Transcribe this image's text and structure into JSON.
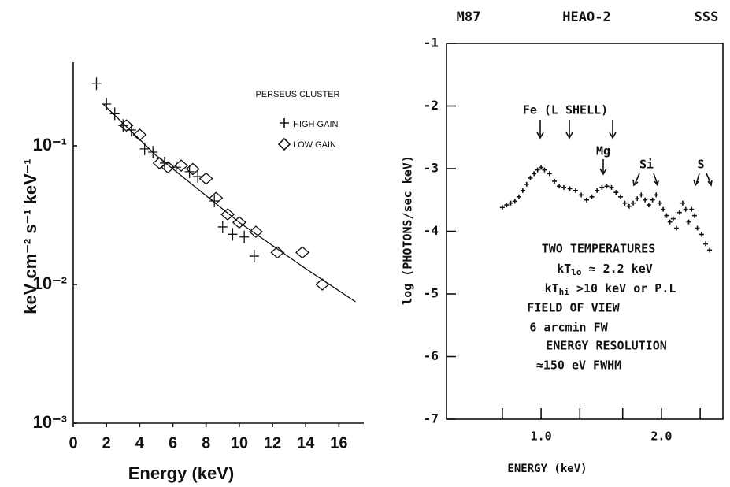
{
  "chart_data": [
    {
      "type": "scatter",
      "annotation": "PERSEUS CLUSTER",
      "x_label": "Energy (keV)",
      "y_label": "keV cm⁻² s⁻¹ keV⁻¹",
      "xlim": [
        0,
        17.5
      ],
      "xticks": [
        0,
        2,
        4,
        6,
        8,
        10,
        12,
        14,
        16
      ],
      "ylim": [
        0.001,
        0.4
      ],
      "log_y": true,
      "yticks": [
        {
          "value": 0.001,
          "label": "10⁻³"
        },
        {
          "value": 0.01,
          "label": "10⁻²"
        },
        {
          "value": 0.1,
          "label": "10⁻¹"
        }
      ],
      "series": [
        {
          "name": "HIGH GAIN",
          "marker": "cross",
          "color": "#111111",
          "x": [
            1.4,
            2.0,
            2.5,
            3.0,
            3.5,
            4.3,
            4.8,
            5.5,
            6.2,
            7.0,
            7.5,
            8.5,
            9.0,
            9.6,
            10.3,
            10.9
          ],
          "values": [
            0.28,
            0.2,
            0.17,
            0.14,
            0.13,
            0.095,
            0.09,
            0.075,
            0.07,
            0.065,
            0.06,
            0.04,
            0.026,
            0.023,
            0.022,
            0.016
          ]
        },
        {
          "name": "LOW GAIN",
          "marker": "diamond",
          "color": "#111111",
          "x": [
            3.2,
            4.0,
            5.2,
            5.7,
            6.5,
            7.2,
            8.0,
            8.6,
            9.3,
            10.0,
            11.0,
            12.3,
            13.8,
            15.0
          ],
          "values": [
            0.14,
            0.12,
            0.075,
            0.07,
            0.072,
            0.068,
            0.058,
            0.042,
            0.032,
            0.028,
            0.024,
            0.017,
            0.017,
            0.01
          ]
        }
      ],
      "fit": {
        "x": [
          1.8,
          5,
          10,
          14,
          17
        ],
        "values": [
          0.2,
          0.085,
          0.028,
          0.013,
          0.0075
        ]
      }
    },
    {
      "type": "scatter",
      "title_left": "M87",
      "title": "HEAO-2",
      "title_right": "SSS",
      "x_label": "ENERGY (keV)",
      "y_label": "log (PHOTONS/sec  keV)",
      "log_x": true,
      "xlim": [
        0.58,
        2.85
      ],
      "xticks": [
        {
          "value": 1.0,
          "label": "1.0"
        },
        {
          "value": 2.0,
          "label": "2.0"
        }
      ],
      "xminor_ticks": [
        0.8,
        1.25,
        1.6,
        2.5
      ],
      "ylim": [
        -7,
        -1
      ],
      "yticks": [
        -7,
        -6,
        -5,
        -4,
        -3,
        -2,
        -1
      ],
      "color": "#111111",
      "x": [
        0.8,
        0.82,
        0.84,
        0.86,
        0.88,
        0.9,
        0.92,
        0.94,
        0.96,
        0.98,
        1.0,
        1.02,
        1.05,
        1.08,
        1.11,
        1.14,
        1.18,
        1.22,
        1.26,
        1.3,
        1.34,
        1.38,
        1.42,
        1.46,
        1.5,
        1.54,
        1.58,
        1.62,
        1.66,
        1.7,
        1.74,
        1.78,
        1.82,
        1.86,
        1.9,
        1.94,
        1.98,
        2.02,
        2.06,
        2.1,
        2.14,
        2.18,
        2.22,
        2.26,
        2.3,
        2.34,
        2.38,
        2.42,
        2.46,
        2.52,
        2.58,
        2.64
      ],
      "values": [
        -3.62,
        -3.58,
        -3.55,
        -3.52,
        -3.45,
        -3.35,
        -3.25,
        -3.15,
        -3.08,
        -3.02,
        -2.98,
        -3.02,
        -3.08,
        -3.2,
        -3.28,
        -3.3,
        -3.32,
        -3.35,
        -3.42,
        -3.5,
        -3.45,
        -3.35,
        -3.3,
        -3.28,
        -3.3,
        -3.38,
        -3.45,
        -3.55,
        -3.6,
        -3.55,
        -3.48,
        -3.42,
        -3.5,
        -3.58,
        -3.5,
        -3.42,
        -3.55,
        -3.65,
        -3.75,
        -3.85,
        -3.8,
        -3.95,
        -3.7,
        -3.55,
        -3.65,
        -3.85,
        -3.65,
        -3.75,
        -3.95,
        -4.05,
        -4.2,
        -4.3
      ],
      "annotations": [
        "Fe (L  SHELL)",
        "Mg",
        "Si",
        "S"
      ],
      "notes": [
        "TWO TEMPERATURES",
        {
          "text": "kT",
          "sub": "lo",
          "rest": " ≈ 2.2 keV"
        },
        {
          "text": "kT",
          "sub": "hi",
          "rest": " >10 keV or P.L"
        },
        "FIELD OF VIEW",
        "6 arcmin FW",
        "ENERGY RESOLUTION",
        "≈150 eV FWHM"
      ]
    }
  ]
}
